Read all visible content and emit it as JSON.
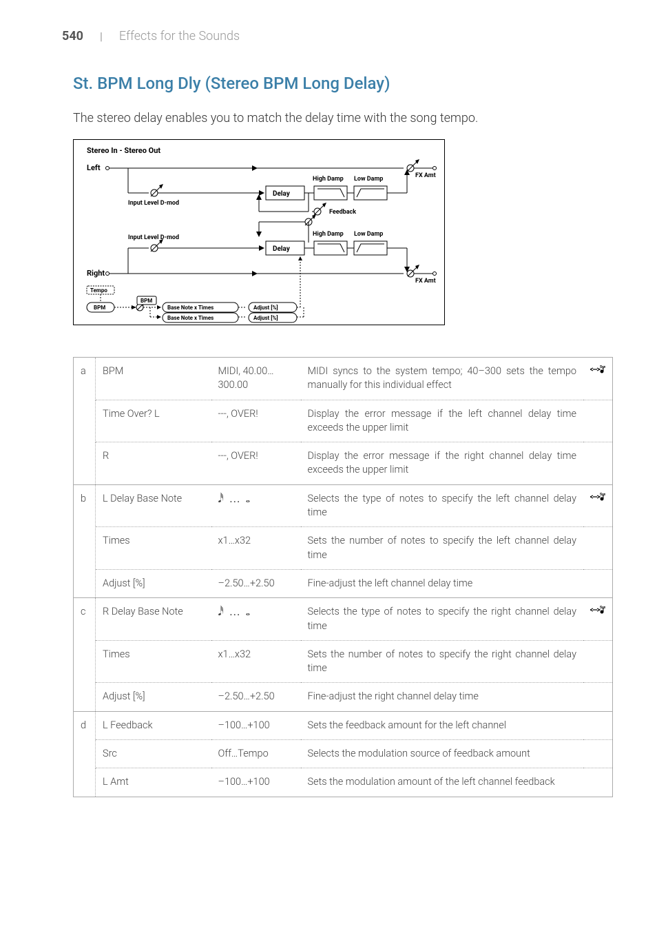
{
  "page_number": "540",
  "header_separator": "|",
  "section_title": "Effects for the Sounds",
  "title": "St. BPM Long Dly (Stereo BPM Long Delay)",
  "description": "The stereo delay enables you to match the delay time with the song tempo.",
  "diagram": {
    "title": "Stereo In - Stereo Out",
    "left_label": "Left",
    "right_label": "Right",
    "fx_amt": "FX Amt",
    "delay": "Delay",
    "high_damp": "High Damp",
    "low_damp": "Low Damp",
    "feedback": "Feedback",
    "input_level_dmod": "Input Level D-mod",
    "tempo": "Tempo",
    "bpm": "BPM",
    "base_note_times": "Base Note x Times",
    "adjust_pct": "Adjust [%]",
    "colors": {
      "stroke": "#000000",
      "background": "#ffffff"
    }
  },
  "note_glyphs": "𝅘𝅥𝅰 … 𝅝",
  "sync_glyph": "⇆𝅘𝅥",
  "rows": [
    {
      "group": "a",
      "name": "BPM",
      "range": "MIDI, 40.00… 300.00",
      "desc": "MIDI syncs to the system tempo; 40–300 sets the tempo manually for this individual effect",
      "has_icon": true,
      "last": false
    },
    {
      "group": "",
      "name": "Time Over? L",
      "range": "---, OVER!",
      "desc": "Display the error message if the left channel delay time exceeds the upper limit",
      "has_icon": false,
      "last": false
    },
    {
      "group": "",
      "name": "R",
      "range": "---, OVER!",
      "desc": "Display the error message if the right channel delay time exceeds the upper limit",
      "has_icon": false,
      "last": true
    },
    {
      "group": "b",
      "name": "L Delay Base Note",
      "range": "__NOTE__",
      "desc": "Selects the type of notes to specify the left channel delay time",
      "has_icon": true,
      "last": false
    },
    {
      "group": "",
      "name": "Times",
      "range": "x1…x32",
      "desc": "Sets the number of notes to specify the left channel delay time",
      "has_icon": false,
      "last": false
    },
    {
      "group": "",
      "name": "Adjust [%]",
      "range": "–2.50…+2.50",
      "desc": "Fine-adjust the left channel delay time",
      "has_icon": false,
      "last": true
    },
    {
      "group": "c",
      "name": "R Delay Base Note",
      "range": "__NOTE__",
      "desc": "Selects the type of notes to specify the right channel delay time",
      "has_icon": true,
      "last": false
    },
    {
      "group": "",
      "name": "Times",
      "range": "x1…x32",
      "desc": "Sets the number of notes to specify the right channel delay time",
      "has_icon": false,
      "last": false
    },
    {
      "group": "",
      "name": "Adjust [%]",
      "range": "–2.50…+2.50",
      "desc": "Fine-adjust the right channel delay time",
      "has_icon": false,
      "last": true
    },
    {
      "group": "d",
      "name": "L Feedback",
      "range": "–100…+100",
      "desc": "Sets the feedback amount for the left channel",
      "has_icon": false,
      "last": false
    },
    {
      "group": "",
      "name": "Src",
      "range": "Off…Tempo",
      "desc": "Selects the modulation source of feedback amount",
      "has_icon": false,
      "last": false
    },
    {
      "group": "",
      "name": "L Amt",
      "range": "–100…+100",
      "desc": "Sets the modulation amount of the left channel feedback",
      "has_icon": false,
      "last": true
    }
  ],
  "group_spans": {
    "a": 3,
    "b": 3,
    "c": 3,
    "d": 3
  }
}
